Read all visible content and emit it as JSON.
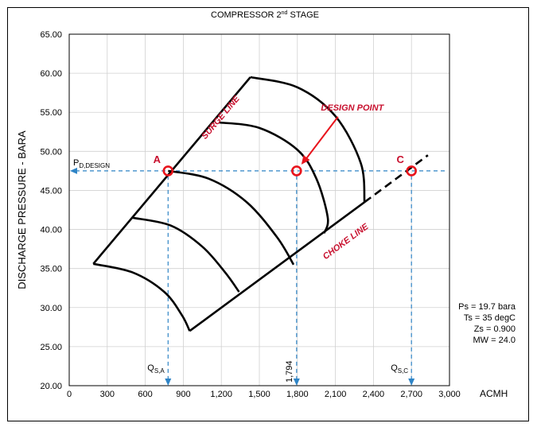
{
  "chart_data": {
    "type": "line",
    "title_main": "COMPRESSOR 2",
    "title_sup": "nd",
    "title_rest": " STAGE",
    "ylabel": "DISCHARGE PRESSURE - BARA",
    "xlabel": "ACMH",
    "xlim": [
      0,
      3000
    ],
    "ylim": [
      20,
      65
    ],
    "x_ticks": [
      0,
      300,
      600,
      900,
      1200,
      1500,
      1800,
      2100,
      2400,
      2700,
      3000
    ],
    "x_tick_labels": [
      "0",
      "300",
      "600",
      "900",
      "1,200",
      "1,500",
      "1,800",
      "2,100",
      "2,400",
      "2,700",
      "3,000"
    ],
    "y_ticks": [
      20,
      25,
      30,
      35,
      40,
      45,
      50,
      55,
      60,
      65
    ],
    "y_tick_labels": [
      "20.00",
      "25.00",
      "30.00",
      "35.00",
      "40.00",
      "45.00",
      "50.00",
      "55.00",
      "60.00",
      "65.00"
    ],
    "surge_line": [
      [
        190,
        35.6
      ],
      [
        1430,
        59.5
      ]
    ],
    "choke_line": [
      [
        950,
        27
      ],
      [
        2330,
        43.5
      ]
    ],
    "choke_extension": [
      [
        2330,
        43.5
      ],
      [
        2830,
        49.5
      ]
    ],
    "speed_curves": [
      [
        [
          1430,
          59.5
        ],
        [
          1800,
          58.2
        ],
        [
          2100,
          54.5
        ],
        [
          2300,
          48.5
        ],
        [
          2330,
          43.5
        ]
      ],
      [
        [
          1180,
          53.7
        ],
        [
          1500,
          53.0
        ],
        [
          1800,
          50.2
        ],
        [
          1950,
          46.5
        ],
        [
          2040,
          41.5
        ],
        [
          2010,
          39.5
        ]
      ],
      [
        [
          780,
          47.5
        ],
        [
          1100,
          46.5
        ],
        [
          1400,
          43.5
        ],
        [
          1640,
          39.0
        ],
        [
          1770,
          35.5
        ]
      ],
      [
        [
          500,
          41.5
        ],
        [
          800,
          40.5
        ],
        [
          1050,
          37.8
        ],
        [
          1230,
          34.5
        ],
        [
          1340,
          32.0
        ]
      ],
      [
        [
          190,
          35.6
        ],
        [
          500,
          34.5
        ],
        [
          750,
          32.0
        ],
        [
          890,
          29.0
        ],
        [
          950,
          27.0
        ]
      ]
    ],
    "design_pressure": 47.5,
    "design_pressure_label_main": "P",
    "design_pressure_label_sub": "D,DESIGN",
    "points": [
      {
        "label": "A",
        "x": 780,
        "y": 47.5
      },
      {
        "label": "",
        "x": 1794,
        "y": 47.5
      },
      {
        "label": "C",
        "x": 2700,
        "y": 47.5
      }
    ],
    "design_point_label": "DESIGN POINT",
    "flow_labels": [
      {
        "main": "Q",
        "sub": "S,A",
        "x": 780
      },
      {
        "main": "1,794",
        "sub": "",
        "x": 1794
      },
      {
        "main": "Q",
        "sub": "S,C",
        "x": 2700
      }
    ],
    "surge_label": "SURGE LINE",
    "choke_label": "CHOKE LINE",
    "conditions": [
      "Ps = 19.7 bara",
      "Ts = 35 degC",
      "Zs = 0.900",
      "MW = 24.0"
    ],
    "colors": {
      "curve": "#000000",
      "marker": "#e8141c",
      "dashed": "#2e84c6",
      "red_text": "#c8102e",
      "grid": "#d0d0d0"
    }
  }
}
